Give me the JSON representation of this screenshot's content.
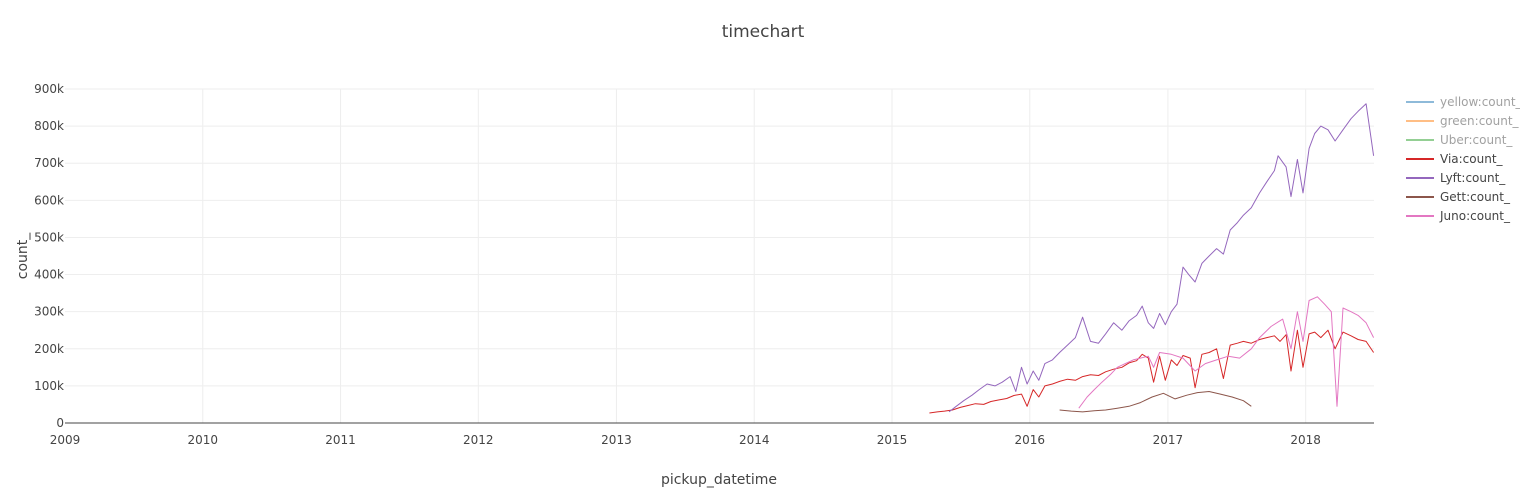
{
  "chart_data": {
    "type": "line",
    "title": "timechart",
    "xlabel": "pickup_datetime",
    "ylabel": "count_",
    "x_range": [
      "2009-01-01",
      "2018-07-01"
    ],
    "ylim": [
      0,
      900000
    ],
    "x_ticks": [
      "2009",
      "2010",
      "2011",
      "2012",
      "2013",
      "2014",
      "2015",
      "2016",
      "2017",
      "2018"
    ],
    "y_ticks": [
      "0",
      "100k",
      "200k",
      "300k",
      "400k",
      "500k",
      "600k",
      "700k",
      "800k",
      "900k"
    ],
    "grid": true,
    "legend_position": "right",
    "series": [
      {
        "name": "yellow:count_",
        "color": "#1f77b4",
        "hidden": true,
        "points": []
      },
      {
        "name": "green:count_",
        "color": "#ff7f0e",
        "hidden": true,
        "points": []
      },
      {
        "name": "Uber:count_",
        "color": "#2ca02c",
        "hidden": true,
        "points": []
      },
      {
        "name": "Via:count_",
        "color": "#d62728",
        "hidden": false,
        "points": [
          [
            "2015-04-10",
            27000
          ],
          [
            "2015-05-01",
            30000
          ],
          [
            "2015-05-20",
            32000
          ],
          [
            "2015-06-10",
            35000
          ],
          [
            "2015-07-01",
            42000
          ],
          [
            "2015-07-20",
            47000
          ],
          [
            "2015-08-10",
            52000
          ],
          [
            "2015-09-01",
            50000
          ],
          [
            "2015-09-20",
            58000
          ],
          [
            "2015-10-10",
            62000
          ],
          [
            "2015-11-01",
            66000
          ],
          [
            "2015-11-20",
            74000
          ],
          [
            "2015-12-10",
            78000
          ],
          [
            "2015-12-25",
            45000
          ],
          [
            "2016-01-10",
            90000
          ],
          [
            "2016-01-25",
            70000
          ],
          [
            "2016-02-10",
            100000
          ],
          [
            "2016-03-01",
            105000
          ],
          [
            "2016-03-20",
            112000
          ],
          [
            "2016-04-10",
            118000
          ],
          [
            "2016-05-01",
            115000
          ],
          [
            "2016-05-20",
            125000
          ],
          [
            "2016-06-10",
            130000
          ],
          [
            "2016-07-01",
            128000
          ],
          [
            "2016-07-20",
            138000
          ],
          [
            "2016-08-10",
            145000
          ],
          [
            "2016-09-01",
            150000
          ],
          [
            "2016-09-20",
            162000
          ],
          [
            "2016-10-10",
            168000
          ],
          [
            "2016-10-25",
            185000
          ],
          [
            "2016-11-10",
            175000
          ],
          [
            "2016-11-24",
            110000
          ],
          [
            "2016-12-10",
            180000
          ],
          [
            "2016-12-25",
            115000
          ],
          [
            "2017-01-10",
            170000
          ],
          [
            "2017-01-25",
            155000
          ],
          [
            "2017-02-10",
            182000
          ],
          [
            "2017-03-01",
            175000
          ],
          [
            "2017-03-14",
            95000
          ],
          [
            "2017-04-01",
            185000
          ],
          [
            "2017-04-20",
            190000
          ],
          [
            "2017-05-10",
            200000
          ],
          [
            "2017-05-28",
            120000
          ],
          [
            "2017-06-15",
            210000
          ],
          [
            "2017-07-04",
            215000
          ],
          [
            "2017-07-20",
            220000
          ],
          [
            "2017-08-10",
            215000
          ],
          [
            "2017-09-01",
            225000
          ],
          [
            "2017-09-20",
            230000
          ],
          [
            "2017-10-10",
            235000
          ],
          [
            "2017-10-25",
            220000
          ],
          [
            "2017-11-10",
            238000
          ],
          [
            "2017-11-23",
            140000
          ],
          [
            "2017-12-10",
            250000
          ],
          [
            "2017-12-25",
            150000
          ],
          [
            "2018-01-10",
            240000
          ],
          [
            "2018-01-25",
            245000
          ],
          [
            "2018-02-10",
            230000
          ],
          [
            "2018-03-01",
            250000
          ],
          [
            "2018-03-20",
            200000
          ],
          [
            "2018-04-10",
            245000
          ],
          [
            "2018-05-01",
            235000
          ],
          [
            "2018-05-20",
            225000
          ],
          [
            "2018-06-10",
            220000
          ],
          [
            "2018-06-30",
            190000
          ]
        ]
      },
      {
        "name": "Lyft:count_",
        "color": "#9467bd",
        "hidden": false,
        "points": [
          [
            "2015-06-01",
            30000
          ],
          [
            "2015-06-20",
            45000
          ],
          [
            "2015-07-10",
            60000
          ],
          [
            "2015-08-01",
            75000
          ],
          [
            "2015-08-20",
            90000
          ],
          [
            "2015-09-10",
            105000
          ],
          [
            "2015-10-01",
            100000
          ],
          [
            "2015-10-20",
            110000
          ],
          [
            "2015-11-10",
            125000
          ],
          [
            "2015-11-25",
            85000
          ],
          [
            "2015-12-10",
            150000
          ],
          [
            "2015-12-25",
            105000
          ],
          [
            "2016-01-10",
            140000
          ],
          [
            "2016-01-25",
            115000
          ],
          [
            "2016-02-10",
            160000
          ],
          [
            "2016-03-01",
            170000
          ],
          [
            "2016-03-20",
            190000
          ],
          [
            "2016-04-10",
            210000
          ],
          [
            "2016-05-01",
            230000
          ],
          [
            "2016-05-20",
            285000
          ],
          [
            "2016-06-10",
            220000
          ],
          [
            "2016-07-01",
            215000
          ],
          [
            "2016-07-20",
            240000
          ],
          [
            "2016-08-10",
            270000
          ],
          [
            "2016-09-01",
            250000
          ],
          [
            "2016-09-20",
            275000
          ],
          [
            "2016-10-10",
            290000
          ],
          [
            "2016-10-25",
            315000
          ],
          [
            "2016-11-10",
            270000
          ],
          [
            "2016-11-24",
            255000
          ],
          [
            "2016-12-10",
            295000
          ],
          [
            "2016-12-25",
            265000
          ],
          [
            "2017-01-10",
            300000
          ],
          [
            "2017-01-25",
            320000
          ],
          [
            "2017-02-10",
            420000
          ],
          [
            "2017-02-25",
            400000
          ],
          [
            "2017-03-14",
            380000
          ],
          [
            "2017-04-01",
            430000
          ],
          [
            "2017-04-20",
            450000
          ],
          [
            "2017-05-10",
            470000
          ],
          [
            "2017-05-28",
            455000
          ],
          [
            "2017-06-15",
            520000
          ],
          [
            "2017-07-04",
            540000
          ],
          [
            "2017-07-20",
            560000
          ],
          [
            "2017-08-10",
            580000
          ],
          [
            "2017-09-01",
            620000
          ],
          [
            "2017-09-20",
            650000
          ],
          [
            "2017-10-10",
            680000
          ],
          [
            "2017-10-20",
            720000
          ],
          [
            "2017-11-10",
            690000
          ],
          [
            "2017-11-23",
            610000
          ],
          [
            "2017-12-10",
            710000
          ],
          [
            "2017-12-25",
            620000
          ],
          [
            "2018-01-10",
            740000
          ],
          [
            "2018-01-25",
            780000
          ],
          [
            "2018-02-10",
            800000
          ],
          [
            "2018-03-01",
            790000
          ],
          [
            "2018-03-20",
            760000
          ],
          [
            "2018-04-10",
            790000
          ],
          [
            "2018-05-01",
            820000
          ],
          [
            "2018-05-20",
            840000
          ],
          [
            "2018-06-10",
            860000
          ],
          [
            "2018-06-30",
            720000
          ]
        ]
      },
      {
        "name": "Gett:count_",
        "color": "#8c564b",
        "hidden": false,
        "points": [
          [
            "2016-03-20",
            35000
          ],
          [
            "2016-04-20",
            32000
          ],
          [
            "2016-05-20",
            30000
          ],
          [
            "2016-06-20",
            33000
          ],
          [
            "2016-07-20",
            35000
          ],
          [
            "2016-08-20",
            40000
          ],
          [
            "2016-09-20",
            45000
          ],
          [
            "2016-10-20",
            55000
          ],
          [
            "2016-11-20",
            70000
          ],
          [
            "2016-12-20",
            80000
          ],
          [
            "2017-01-20",
            65000
          ],
          [
            "2017-02-20",
            75000
          ],
          [
            "2017-03-20",
            82000
          ],
          [
            "2017-04-20",
            85000
          ],
          [
            "2017-05-20",
            78000
          ],
          [
            "2017-06-20",
            70000
          ],
          [
            "2017-07-20",
            60000
          ],
          [
            "2017-08-10",
            45000
          ]
        ]
      },
      {
        "name": "Juno:count_",
        "color": "#e377c2",
        "hidden": false,
        "points": [
          [
            "2016-05-10",
            40000
          ],
          [
            "2016-06-01",
            70000
          ],
          [
            "2016-06-20",
            90000
          ],
          [
            "2016-07-10",
            110000
          ],
          [
            "2016-08-01",
            130000
          ],
          [
            "2016-08-20",
            150000
          ],
          [
            "2016-09-10",
            160000
          ],
          [
            "2016-10-01",
            170000
          ],
          [
            "2016-10-20",
            175000
          ],
          [
            "2016-11-10",
            180000
          ],
          [
            "2016-11-24",
            150000
          ],
          [
            "2016-12-10",
            190000
          ],
          [
            "2017-01-10",
            185000
          ],
          [
            "2017-02-10",
            175000
          ],
          [
            "2017-03-14",
            140000
          ],
          [
            "2017-04-10",
            160000
          ],
          [
            "2017-05-10",
            170000
          ],
          [
            "2017-06-10",
            180000
          ],
          [
            "2017-07-10",
            175000
          ],
          [
            "2017-08-10",
            200000
          ],
          [
            "2017-09-01",
            230000
          ],
          [
            "2017-10-01",
            260000
          ],
          [
            "2017-11-01",
            280000
          ],
          [
            "2017-11-23",
            200000
          ],
          [
            "2017-12-10",
            300000
          ],
          [
            "2017-12-25",
            220000
          ],
          [
            "2018-01-10",
            330000
          ],
          [
            "2018-02-01",
            340000
          ],
          [
            "2018-02-20",
            320000
          ],
          [
            "2018-03-10",
            300000
          ],
          [
            "2018-03-25",
            45000
          ],
          [
            "2018-04-10",
            310000
          ],
          [
            "2018-05-01",
            300000
          ],
          [
            "2018-05-20",
            290000
          ],
          [
            "2018-06-10",
            270000
          ],
          [
            "2018-06-30",
            230000
          ]
        ]
      }
    ]
  }
}
